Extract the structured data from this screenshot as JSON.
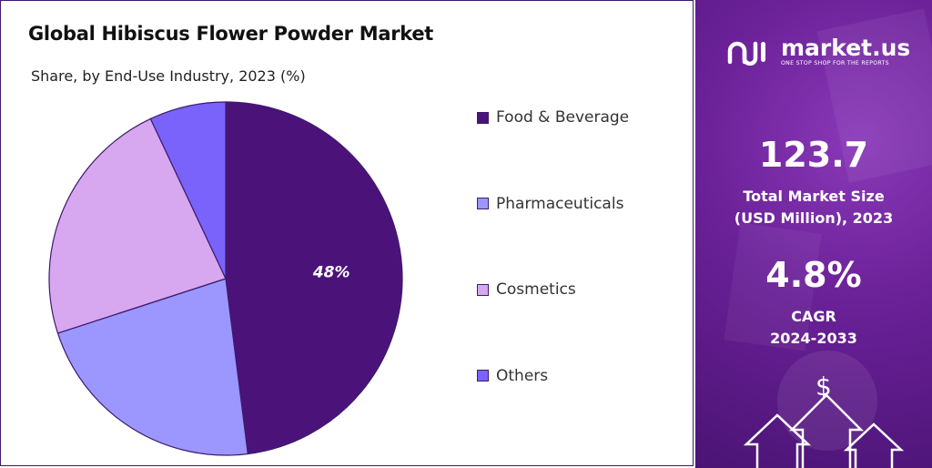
{
  "chart_data": {
    "type": "pie",
    "title": "Global Hibiscus Flower Powder Market",
    "subtitle": "Share, by End-Use Industry, 2023 (%)",
    "legend_position": "right",
    "slices": [
      {
        "label": "Food & Beverage",
        "value": 48,
        "color": "#4b137a",
        "data_label": "48%"
      },
      {
        "label": "Pharmaceuticals",
        "value": 22,
        "color": "#9b97fe",
        "data_label": ""
      },
      {
        "label": "Cosmetics",
        "value": 23,
        "color": "#d7a8ef",
        "data_label": ""
      },
      {
        "label": "Others",
        "value": 7,
        "color": "#7a63fb",
        "data_label": ""
      }
    ]
  },
  "side_panel": {
    "brand_name": "market.us",
    "brand_tagline": "ONE STOP SHOP FOR THE REPORTS",
    "market_size_value": "123.7",
    "market_size_label_line1": "Total Market Size",
    "market_size_label_line2": "(USD Million), 2023",
    "cagr_value": "4.8%",
    "cagr_label_line1": "CAGR",
    "cagr_label_line2": "2024-2033",
    "dollar_symbol": "$"
  },
  "colors": {
    "panel_bg": "#6a2097",
    "border": "#3d1a6e"
  }
}
